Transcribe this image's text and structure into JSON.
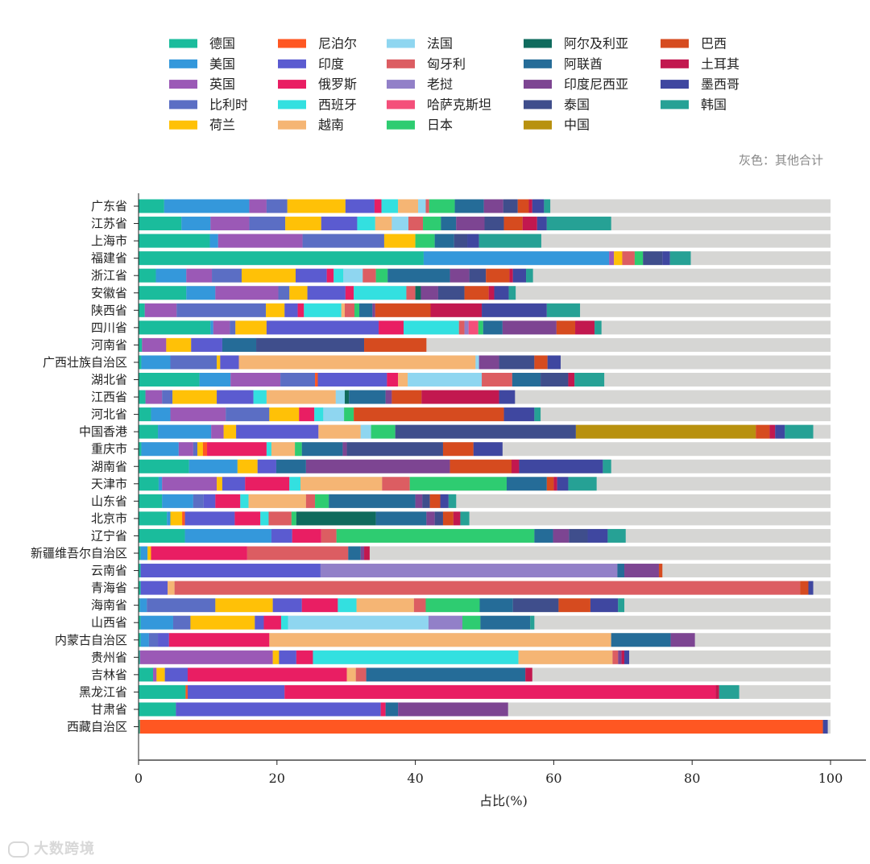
{
  "chart_data": {
    "type": "bar",
    "orientation": "horizontal",
    "stacked": true,
    "xlabel": "占比(%)",
    "xlim": [
      0,
      100
    ],
    "xticks": [
      0,
      20,
      40,
      60,
      80,
      100
    ],
    "grid": false,
    "legend_placement": "top",
    "remainder_note": "灰色：其他合计",
    "remainder_color": "#d6d6d4",
    "categories": [
      "广东省",
      "江苏省",
      "上海市",
      "福建省",
      "浙江省",
      "安徽省",
      "陕西省",
      "四川省",
      "河南省",
      "广西壮族自治区",
      "湖北省",
      "江西省",
      "河北省",
      "中国香港",
      "重庆市",
      "湖南省",
      "天津市",
      "山东省",
      "北京市",
      "辽宁省",
      "新疆维吾尔自治区",
      "云南省",
      "青海省",
      "海南省",
      "山西省",
      "内蒙古自治区",
      "贵州省",
      "吉林省",
      "黑龙江省",
      "甘肃省",
      "西藏自治区"
    ],
    "series": [
      {
        "name": "德国",
        "color": "#1abc9c",
        "values": [
          3.7,
          6.2,
          10.3,
          41.2,
          2.5,
          6.9,
          0.9,
          10.4,
          0.5,
          0.4,
          8.8,
          1,
          1.8,
          2.8,
          0.4,
          7.3,
          2.9,
          3.4,
          4.1,
          6.7,
          0.3,
          0.3,
          0.3,
          0.2,
          0.3,
          0.3,
          0.2,
          2.1,
          6.8,
          5.4,
          0.2
        ]
      },
      {
        "name": "美国",
        "color": "#3498db",
        "values": [
          12.3,
          4.2,
          1.2,
          26.8,
          4.4,
          4.2,
          0,
          0.4,
          0,
          4.2,
          4.5,
          0,
          2.8,
          7.7,
          5.4,
          7,
          0.5,
          4.5,
          0.5,
          12.5,
          1,
          0,
          0,
          1,
          4.7,
          1.2,
          0,
          0,
          0,
          0,
          0
        ]
      },
      {
        "name": "英国",
        "color": "#9b59b6",
        "values": [
          2.5,
          5.6,
          12.2,
          0.7,
          3.7,
          9.1,
          4.6,
          2.4,
          3.5,
          0,
          7.2,
          2.4,
          8,
          1.8,
          2.1,
          0,
          7.9,
          0,
          0,
          0,
          0,
          0,
          0,
          0,
          0,
          0,
          19.2,
          0.5,
          0,
          0,
          0
        ]
      },
      {
        "name": "比利时",
        "color": "#5b6ec4",
        "values": [
          3,
          5.2,
          11.8,
          0,
          4.3,
          1.6,
          12.9,
          0.8,
          0,
          6.7,
          5,
          1.5,
          6.3,
          0,
          0.6,
          0,
          0,
          1.5,
          0,
          0,
          0,
          0,
          0,
          9.9,
          2.5,
          1.3,
          0,
          0,
          0,
          0,
          0
        ]
      },
      {
        "name": "荷兰",
        "color": "#ffc107",
        "values": [
          8.4,
          5.2,
          4.5,
          1.2,
          7.8,
          2.6,
          2.7,
          4.5,
          3.6,
          0.5,
          0,
          6.4,
          4.3,
          1.8,
          0.8,
          2.9,
          0.8,
          0,
          1.7,
          0,
          0.5,
          0,
          0,
          8.3,
          9.3,
          0,
          0.9,
          1.2,
          0,
          0,
          0
        ]
      },
      {
        "name": "尼泊尔",
        "color": "#ff5722",
        "values": [
          0,
          0,
          0,
          0,
          0,
          0,
          0,
          0,
          0,
          0,
          0.4,
          0,
          0,
          0,
          0.6,
          0,
          0,
          0,
          0.4,
          0,
          0,
          0,
          0,
          0,
          0,
          0,
          0,
          0,
          0.3,
          0,
          98.7
        ]
      },
      {
        "name": "印度",
        "color": "#5b5bd0",
        "values": [
          4.2,
          5.2,
          0,
          0,
          4.5,
          5.5,
          1.9,
          16.2,
          4.5,
          2.7,
          10,
          5.3,
          0,
          11.9,
          0,
          2.7,
          3.3,
          1.7,
          7.2,
          3,
          0,
          26,
          3.9,
          4.2,
          1.3,
          1.6,
          2.5,
          3.3,
          14,
          29.6,
          0
        ]
      },
      {
        "name": "俄罗斯",
        "color": "#e91e63",
        "values": [
          1,
          0,
          0,
          0,
          1,
          1.2,
          0.9,
          3.6,
          0,
          0,
          1.6,
          0,
          2.2,
          0,
          8.6,
          0,
          6.4,
          3.6,
          3.7,
          4.2,
          13.9,
          0,
          0,
          5.2,
          2.5,
          14.5,
          2.4,
          23,
          62.3,
          0.7,
          0
        ]
      },
      {
        "name": "西班牙",
        "color": "#33e0e0",
        "values": [
          2.4,
          2.6,
          0,
          0,
          1.4,
          7.6,
          5.4,
          8,
          0,
          0,
          0,
          1.9,
          1.3,
          0,
          0.7,
          0,
          1.6,
          1.2,
          1.2,
          0,
          0,
          0,
          0,
          2.7,
          1,
          0,
          29.7,
          0,
          0,
          0,
          0
        ]
      },
      {
        "name": "越南",
        "color": "#f5b574",
        "values": [
          2.9,
          2.4,
          0,
          0,
          0,
          0,
          0.5,
          0,
          0,
          34.2,
          1.4,
          10,
          0,
          6.1,
          3.4,
          0,
          11.8,
          8.3,
          0,
          0,
          0,
          0,
          1,
          8.3,
          0,
          49.4,
          13.6,
          1.3,
          0,
          0,
          0
        ]
      },
      {
        "name": "法国",
        "color": "#8fd6f0",
        "values": [
          1.1,
          2.4,
          0,
          0,
          2.8,
          0,
          0,
          0,
          0,
          0.5,
          10.7,
          1.3,
          3,
          1.5,
          0,
          0,
          0,
          0,
          0,
          0,
          0,
          0,
          0,
          0,
          20.3,
          0,
          0,
          0,
          0,
          0,
          0
        ]
      },
      {
        "name": "匈牙利",
        "color": "#dc5d62",
        "values": [
          0.5,
          2.1,
          0,
          1.8,
          1.9,
          1.3,
          1.4,
          0.8,
          0,
          0,
          4.4,
          0,
          0,
          0,
          0,
          0,
          4,
          1.3,
          3.3,
          2.2,
          14.6,
          0,
          90.4,
          1.7,
          0,
          0,
          0.8,
          1.5,
          0,
          0,
          0
        ]
      },
      {
        "name": "老挝",
        "color": "#9280c8",
        "values": [
          0,
          0,
          0,
          0,
          0,
          0,
          0,
          0.6,
          0,
          0,
          0,
          0,
          0,
          0,
          0,
          0,
          0,
          0,
          0,
          0,
          0,
          42.9,
          0,
          0,
          4.9,
          0,
          0,
          0,
          0,
          0,
          0
        ]
      },
      {
        "name": "哈萨克斯坦",
        "color": "#f44f7a",
        "values": [
          0,
          0,
          0,
          0,
          0,
          0,
          0,
          1.4,
          0,
          0,
          0,
          0,
          0,
          0,
          0,
          0,
          0,
          0,
          0,
          0,
          0,
          0,
          0,
          0,
          0,
          0,
          0,
          0,
          0,
          0,
          0
        ]
      },
      {
        "name": "日本",
        "color": "#2ecc71",
        "values": [
          3.7,
          2.6,
          2.8,
          1.2,
          1.7,
          0,
          0.7,
          0.7,
          0,
          0,
          0,
          0,
          1.4,
          3.5,
          1,
          0,
          14,
          2,
          0.7,
          28.6,
          0,
          0,
          0,
          7.8,
          2.6,
          0,
          0,
          0,
          0,
          0,
          0
        ]
      },
      {
        "name": "阿尔及利亚",
        "color": "#0f6b5d",
        "values": [
          0,
          0,
          0,
          0,
          0,
          0.8,
          0,
          0,
          0,
          0,
          0,
          0.6,
          0,
          0,
          0,
          0,
          0,
          0,
          11.5,
          0,
          0,
          0,
          0,
          0,
          0,
          0,
          0,
          0,
          0,
          0,
          0
        ]
      },
      {
        "name": "阿联酋",
        "color": "#256c98",
        "values": [
          4.2,
          2.2,
          2.8,
          0,
          9,
          0,
          1.9,
          2.8,
          4.9,
          0,
          4.1,
          5.3,
          0,
          0,
          5.9,
          4.3,
          5.8,
          12.5,
          7.3,
          2.7,
          1.8,
          1,
          0,
          4.8,
          7.2,
          8.6,
          0,
          23,
          0,
          1.8,
          0
        ]
      },
      {
        "name": "印度尼西亚",
        "color": "#7d4592",
        "values": [
          2.8,
          4.1,
          0,
          0,
          2.8,
          2.5,
          0.4,
          7.8,
          0,
          2.9,
          0,
          0.9,
          0,
          0,
          0.6,
          20.8,
          0,
          1,
          1.2,
          2.3,
          0.5,
          5,
          0,
          0,
          0,
          3.5,
          0.5,
          0,
          0,
          15.9,
          0
        ]
      },
      {
        "name": "泰国",
        "color": "#3f4e8c",
        "values": [
          2.1,
          2.8,
          1.9,
          2.8,
          2.4,
          3.8,
          0,
          0,
          15.6,
          5.1,
          4,
          0,
          0,
          26.1,
          13.9,
          0,
          0,
          1.1,
          1.2,
          2.7,
          0,
          0,
          0,
          6.6,
          0,
          0,
          0,
          0,
          0,
          0,
          0
        ]
      },
      {
        "name": "中国",
        "color": "#b8910f",
        "values": [
          0,
          0,
          0,
          0,
          0,
          0,
          0,
          0,
          0,
          0,
          0,
          0,
          0,
          26,
          0,
          0,
          0,
          0,
          0,
          0,
          0,
          0,
          0,
          0,
          0,
          0,
          0,
          0,
          0,
          0,
          0
        ]
      },
      {
        "name": "巴西",
        "color": "#d64b1f",
        "values": [
          1.6,
          2.7,
          0,
          0,
          3.4,
          3.5,
          8,
          2.7,
          9,
          1.9,
          0,
          4.3,
          21.7,
          2,
          4.4,
          8.9,
          1,
          1.5,
          1.5,
          0,
          0,
          0.5,
          1.2,
          4.6,
          0,
          0,
          0,
          0,
          0,
          0,
          0
        ]
      },
      {
        "name": "土耳其",
        "color": "#c2184f",
        "values": [
          0.5,
          2.1,
          0,
          0,
          0.5,
          0.8,
          7.4,
          2.8,
          0,
          0,
          0.9,
          11.2,
          0,
          0.8,
          0,
          1.1,
          0.5,
          0,
          1,
          0,
          0.8,
          0,
          0,
          0,
          0,
          0,
          0.4,
          1,
          0.5,
          0,
          0
        ]
      },
      {
        "name": "墨西哥",
        "color": "#3f47a0",
        "values": [
          1.7,
          1.4,
          1.7,
          1.1,
          1.9,
          2.1,
          9.4,
          0,
          0,
          1.9,
          0,
          2.3,
          4.4,
          1.4,
          4.2,
          12.1,
          1.6,
          1.2,
          0,
          2.9,
          0,
          0,
          0.7,
          4,
          0,
          0,
          0.7,
          0,
          0,
          0,
          0.7
        ]
      },
      {
        "name": "韩国",
        "color": "#26a195",
        "values": [
          0.9,
          9.3,
          9,
          3,
          1,
          1,
          4.8,
          1,
          0,
          0,
          4.3,
          0,
          0.9,
          4.1,
          0,
          1.2,
          4.1,
          1.1,
          1.3,
          2.6,
          0,
          0,
          0,
          0.9,
          0.6,
          0,
          0,
          0,
          2.9,
          0,
          0
        ]
      }
    ]
  }
}
